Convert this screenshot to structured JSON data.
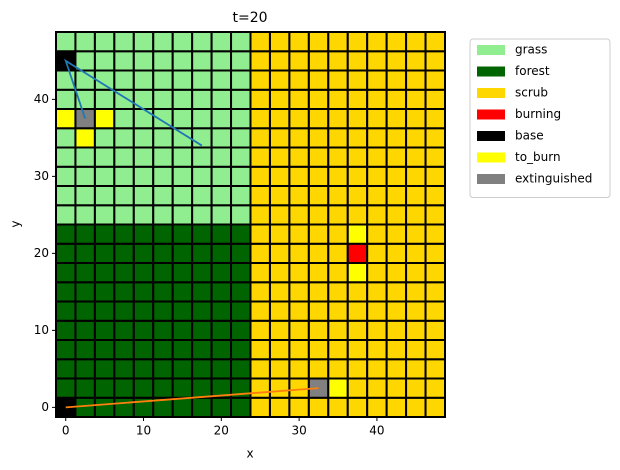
{
  "chart_data": {
    "type": "grid",
    "title": "t=20",
    "x_label": "x",
    "y_label": "y",
    "xlim": [
      -1.25,
      48.75
    ],
    "ylim": [
      -1.25,
      48.75
    ],
    "xticks": [
      0,
      10,
      20,
      30,
      40
    ],
    "yticks": [
      0,
      10,
      20,
      30,
      40
    ],
    "legend_position": "outside right",
    "states": [
      {
        "name": "grass",
        "color": "#90ee90"
      },
      {
        "name": "forest",
        "color": "#006400"
      },
      {
        "name": "scrub",
        "color": "#ffd700"
      },
      {
        "name": "burning",
        "color": "#ff0000"
      },
      {
        "name": "base",
        "color": "#000000"
      },
      {
        "name": "to_burn",
        "color": "#ffff00"
      },
      {
        "name": "extinguished",
        "color": "#808080"
      }
    ],
    "x": [
      0,
      2.5,
      5,
      7.5,
      10,
      12.5,
      15,
      17.5,
      20,
      22.5,
      25,
      27.5,
      30,
      32.5,
      35,
      37.5,
      40,
      42.5,
      45,
      47.5
    ],
    "y": [
      0,
      2.5,
      5,
      7.5,
      10,
      12.5,
      15,
      17.5,
      20,
      22.5,
      25,
      27.5,
      30,
      32.5,
      35,
      37.5,
      40,
      42.5,
      45,
      47.5
    ],
    "grid": [
      [
        4,
        1,
        1,
        1,
        1,
        1,
        1,
        1,
        1,
        1,
        2,
        2,
        2,
        2,
        2,
        2,
        2,
        2,
        2,
        2
      ],
      [
        1,
        1,
        1,
        1,
        1,
        1,
        1,
        1,
        1,
        1,
        2,
        2,
        2,
        6,
        5,
        2,
        2,
        2,
        2,
        2
      ],
      [
        1,
        1,
        1,
        1,
        1,
        1,
        1,
        1,
        1,
        1,
        2,
        2,
        2,
        2,
        2,
        2,
        2,
        2,
        2,
        2
      ],
      [
        1,
        1,
        1,
        1,
        1,
        1,
        1,
        1,
        1,
        1,
        2,
        2,
        2,
        2,
        2,
        2,
        2,
        2,
        2,
        2
      ],
      [
        1,
        1,
        1,
        1,
        1,
        1,
        1,
        1,
        1,
        1,
        2,
        2,
        2,
        2,
        2,
        2,
        2,
        2,
        2,
        2
      ],
      [
        1,
        1,
        1,
        1,
        1,
        1,
        1,
        1,
        1,
        1,
        2,
        2,
        2,
        2,
        2,
        2,
        2,
        2,
        2,
        2
      ],
      [
        1,
        1,
        1,
        1,
        1,
        1,
        1,
        1,
        1,
        1,
        2,
        2,
        2,
        2,
        2,
        2,
        2,
        2,
        2,
        2
      ],
      [
        1,
        1,
        1,
        1,
        1,
        1,
        1,
        1,
        1,
        1,
        2,
        2,
        2,
        2,
        2,
        5,
        2,
        2,
        2,
        2
      ],
      [
        1,
        1,
        1,
        1,
        1,
        1,
        1,
        1,
        1,
        1,
        2,
        2,
        2,
        2,
        2,
        3,
        2,
        2,
        2,
        2
      ],
      [
        1,
        1,
        1,
        1,
        1,
        1,
        1,
        1,
        1,
        1,
        2,
        2,
        2,
        2,
        2,
        5,
        2,
        2,
        2,
        2
      ],
      [
        0,
        0,
        0,
        0,
        0,
        0,
        0,
        0,
        0,
        0,
        2,
        2,
        2,
        2,
        2,
        2,
        2,
        2,
        2,
        2
      ],
      [
        0,
        0,
        0,
        0,
        0,
        0,
        0,
        0,
        0,
        0,
        2,
        2,
        2,
        2,
        2,
        2,
        2,
        2,
        2,
        2
      ],
      [
        0,
        0,
        0,
        0,
        0,
        0,
        0,
        0,
        0,
        0,
        2,
        2,
        2,
        2,
        2,
        2,
        2,
        2,
        2,
        2
      ],
      [
        0,
        0,
        0,
        0,
        0,
        0,
        0,
        0,
        0,
        0,
        2,
        2,
        2,
        2,
        2,
        2,
        2,
        2,
        2,
        2
      ],
      [
        0,
        5,
        0,
        0,
        0,
        0,
        0,
        0,
        0,
        0,
        2,
        2,
        2,
        2,
        2,
        2,
        2,
        2,
        2,
        2
      ],
      [
        5,
        6,
        5,
        0,
        0,
        0,
        0,
        0,
        0,
        0,
        2,
        2,
        2,
        2,
        2,
        2,
        2,
        2,
        2,
        2
      ],
      [
        0,
        0,
        0,
        0,
        0,
        0,
        0,
        0,
        0,
        0,
        2,
        2,
        2,
        2,
        2,
        2,
        2,
        2,
        2,
        2
      ],
      [
        0,
        0,
        0,
        0,
        0,
        0,
        0,
        0,
        0,
        0,
        2,
        2,
        2,
        2,
        2,
        2,
        2,
        2,
        2,
        2
      ],
      [
        4,
        0,
        0,
        0,
        0,
        0,
        0,
        0,
        0,
        0,
        2,
        2,
        2,
        2,
        2,
        2,
        2,
        2,
        2,
        2
      ],
      [
        0,
        0,
        0,
        0,
        0,
        0,
        0,
        0,
        0,
        0,
        2,
        2,
        2,
        2,
        2,
        2,
        2,
        2,
        2,
        2
      ]
    ],
    "lines": [
      {
        "color": "#1f77b4",
        "x": [
          2.5,
          0,
          17.5
        ],
        "y": [
          37.5,
          45,
          34
        ]
      },
      {
        "color": "#ff7f0e",
        "x": [
          0,
          32.5
        ],
        "y": [
          0,
          2.5
        ]
      }
    ]
  }
}
